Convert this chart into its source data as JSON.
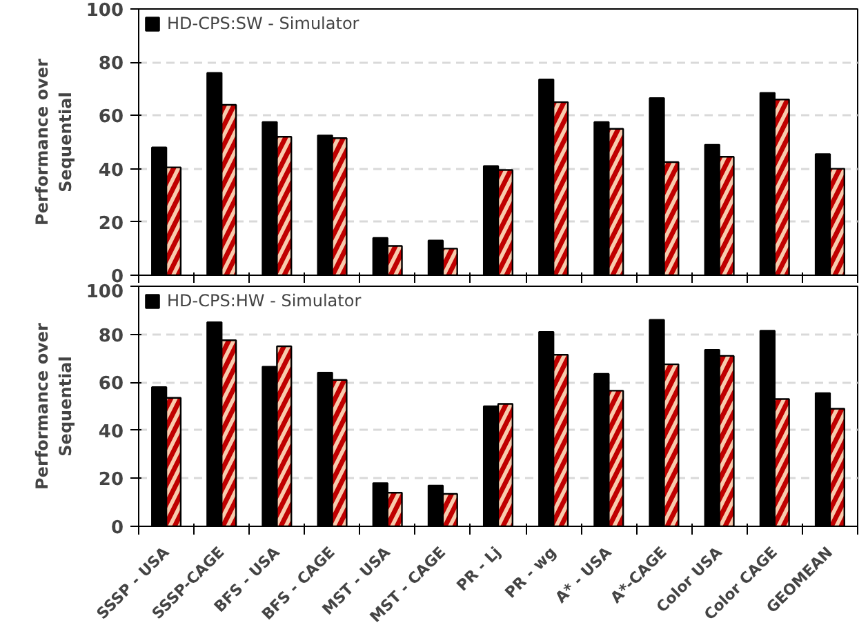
{
  "chart_data": [
    {
      "type": "bar",
      "ylabel": "Performance over\nSequential",
      "categories": [
        null,
        null,
        null,
        null,
        null,
        null,
        null,
        null,
        null,
        null,
        null,
        null,
        null
      ],
      "series": [
        {
          "name": "HD-CPS:SW - Simulator",
          "color": "#000000",
          "values": [
            48,
            76,
            57.5,
            52.5,
            14,
            13,
            41,
            73.5,
            57.5,
            66.5,
            49,
            68.5,
            45.5
          ]
        },
        {
          "color": "#f8cbad",
          "values": [
            40.5,
            64,
            52,
            51.5,
            11,
            10,
            39.5,
            65,
            55,
            42.5,
            44.5,
            66,
            40
          ]
        }
      ],
      "ylim": [
        0,
        100
      ],
      "yticks": [
        0,
        20,
        40,
        60,
        80,
        100
      ],
      "grid": "y",
      "legend": "top left",
      "tick_labels": "y"
    },
    {
      "type": "bar",
      "ylabel": "Performance over\nSequential",
      "categories": [
        "SSSP - USA",
        "SSSP-CAGE",
        "BFS - USA",
        "BFS - CAGE",
        "MST - USA",
        "MST - CAGE",
        "PR - Lj",
        "PR - wg",
        "A* - USA",
        "A*-CAGE",
        "Color USA",
        "Color CAGE",
        "GEOMEAN"
      ],
      "series": [
        {
          "name": "HD-CPS:HW - Simulator",
          "color": "#000000",
          "values": [
            58,
            85,
            66.5,
            64,
            18,
            17,
            50,
            81,
            63.5,
            86,
            73.5,
            81.5,
            55.5
          ]
        },
        {
          "color": "#f8cbad",
          "values": [
            53.5,
            77.5,
            75,
            61,
            14,
            13.5,
            51,
            71.5,
            56.5,
            67.5,
            71,
            53,
            49
          ]
        }
      ],
      "ylim": [
        0,
        100
      ],
      "yticks": [
        0,
        20,
        40,
        60,
        80,
        100
      ],
      "grid": "y",
      "legend": "top left"
    }
  ]
}
